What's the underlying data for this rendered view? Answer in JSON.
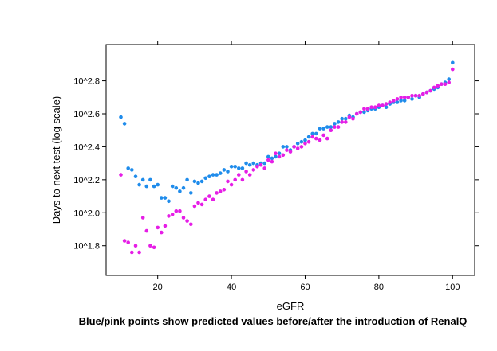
{
  "chart_data": {
    "type": "scatter",
    "xlabel": "eGFR",
    "ylabel": "Days to next test (log scale)",
    "caption": "Blue/pink points show predicted values before/after the introduction of RenalQ",
    "xlim": [
      6,
      106
    ],
    "ylim": [
      1.62,
      3.02
    ],
    "x_ticks": [
      20,
      40,
      60,
      80,
      100
    ],
    "x_tick_labels": [
      "20",
      "40",
      "60",
      "80",
      "100"
    ],
    "y_ticks": [
      1.8,
      2.0,
      2.2,
      2.4,
      2.6,
      2.8
    ],
    "y_tick_labels": [
      "10^1.8",
      "10^2.0",
      "10^2.2",
      "10^2.4",
      "10^2.6",
      "10^2.8"
    ],
    "y_scale": "log10",
    "grid": false,
    "series": [
      {
        "color": "#1f8ceb",
        "x": [
          10,
          11,
          12,
          13,
          14,
          15,
          16,
          17,
          18,
          19,
          20,
          21,
          22,
          23,
          24,
          25,
          26,
          27,
          28,
          29,
          30,
          31,
          32,
          33,
          34,
          35,
          36,
          37,
          38,
          39,
          40,
          41,
          42,
          43,
          44,
          45,
          46,
          47,
          48,
          49,
          50,
          51,
          52,
          53,
          54,
          55,
          56,
          57,
          58,
          59,
          60,
          61,
          62,
          63,
          64,
          65,
          66,
          67,
          68,
          69,
          70,
          71,
          72,
          73,
          74,
          75,
          76,
          77,
          78,
          79,
          80,
          81,
          82,
          83,
          84,
          85,
          86,
          87,
          88,
          89,
          90,
          91,
          92,
          93,
          94,
          95,
          96,
          97,
          98,
          99,
          100
        ],
        "y": [
          2.58,
          2.54,
          2.27,
          2.26,
          2.22,
          2.17,
          2.2,
          2.16,
          2.2,
          2.16,
          2.17,
          2.09,
          2.09,
          2.07,
          2.16,
          2.15,
          2.13,
          2.15,
          2.2,
          2.12,
          2.19,
          2.18,
          2.19,
          2.21,
          2.22,
          2.23,
          2.23,
          2.24,
          2.26,
          2.25,
          2.28,
          2.28,
          2.27,
          2.27,
          2.3,
          2.29,
          2.3,
          2.29,
          2.3,
          2.3,
          2.34,
          2.33,
          2.34,
          2.36,
          2.4,
          2.4,
          2.38,
          2.4,
          2.42,
          2.43,
          2.44,
          2.46,
          2.48,
          2.48,
          2.51,
          2.51,
          2.52,
          2.52,
          2.54,
          2.55,
          2.57,
          2.57,
          2.59,
          2.58,
          2.6,
          2.61,
          2.61,
          2.62,
          2.63,
          2.63,
          2.64,
          2.65,
          2.64,
          2.66,
          2.67,
          2.67,
          2.68,
          2.68,
          2.7,
          2.69,
          2.71,
          2.7,
          2.72,
          2.73,
          2.74,
          2.75,
          2.76,
          2.78,
          2.79,
          2.81,
          2.91
        ]
      },
      {
        "color": "#e61ee6",
        "x": [
          10,
          11,
          12,
          13,
          14,
          15,
          16,
          17,
          18,
          19,
          20,
          21,
          22,
          23,
          24,
          25,
          26,
          27,
          28,
          29,
          30,
          31,
          32,
          33,
          34,
          35,
          36,
          37,
          38,
          39,
          40,
          41,
          42,
          43,
          44,
          45,
          46,
          47,
          48,
          49,
          50,
          51,
          52,
          53,
          54,
          55,
          56,
          57,
          58,
          59,
          60,
          61,
          62,
          63,
          64,
          65,
          66,
          67,
          68,
          69,
          70,
          71,
          72,
          73,
          74,
          75,
          76,
          77,
          78,
          79,
          80,
          81,
          82,
          83,
          84,
          85,
          86,
          87,
          88,
          89,
          90,
          91,
          92,
          93,
          94,
          95,
          96,
          97,
          98,
          99,
          100
        ],
        "y": [
          2.23,
          1.83,
          1.82,
          1.76,
          1.8,
          1.76,
          1.97,
          1.89,
          1.8,
          1.79,
          1.91,
          1.88,
          1.92,
          1.98,
          1.99,
          2.01,
          2.01,
          1.97,
          1.95,
          1.93,
          2.04,
          2.06,
          2.05,
          2.08,
          2.1,
          2.08,
          2.12,
          2.13,
          2.14,
          2.19,
          2.17,
          2.2,
          2.23,
          2.2,
          2.25,
          2.23,
          2.26,
          2.28,
          2.29,
          2.27,
          2.32,
          2.31,
          2.36,
          2.34,
          2.35,
          2.38,
          2.37,
          2.4,
          2.39,
          2.4,
          2.42,
          2.43,
          2.46,
          2.45,
          2.44,
          2.47,
          2.45,
          2.5,
          2.52,
          2.52,
          2.55,
          2.55,
          2.58,
          2.57,
          2.6,
          2.61,
          2.63,
          2.63,
          2.64,
          2.64,
          2.65,
          2.65,
          2.66,
          2.67,
          2.68,
          2.69,
          2.7,
          2.7,
          2.7,
          2.71,
          2.71,
          2.71,
          2.72,
          2.73,
          2.74,
          2.76,
          2.77,
          2.78,
          2.78,
          2.79,
          2.87
        ]
      }
    ]
  }
}
